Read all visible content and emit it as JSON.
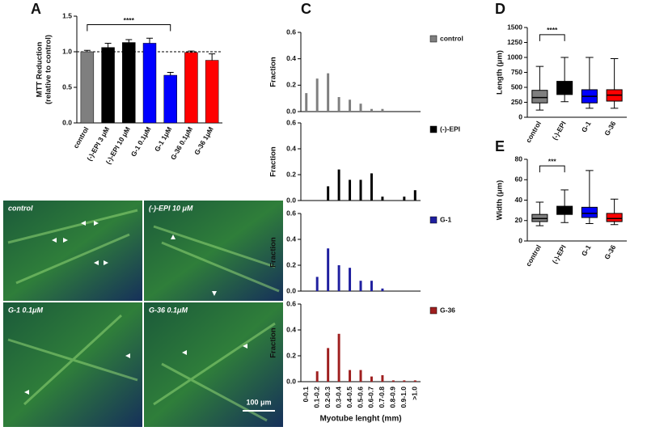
{
  "chart_data": [
    {
      "type": "bar",
      "panel_label": "A",
      "ylabel": [
        "MTT Reduction",
        "(relative to control)"
      ],
      "categories": [
        "control",
        "(-)-EPI 3 μM",
        "(-)-EPI 10 μM",
        "G-1 0.1μM",
        "G-1 1μM",
        "G-36 0.1μM",
        "G-36 1μM"
      ],
      "values": [
        1.0,
        1.06,
        1.13,
        1.12,
        0.67,
        0.99,
        0.88
      ],
      "errors": [
        0.02,
        0.06,
        0.04,
        0.07,
        0.04,
        0.02,
        0.09
      ],
      "colors": [
        "#7f7f7f",
        "#000000",
        "#000000",
        "#0000ff",
        "#0000ff",
        "#ff0000",
        "#ff0000"
      ],
      "ylim": [
        0,
        1.5
      ],
      "yticks": [
        {
          "value": 0,
          "label": "0.0"
        },
        0.5,
        {
          "value": 1,
          "label": "1.0"
        },
        1.5
      ],
      "reference_line": 1,
      "annotation": "****"
    },
    {
      "type": "bar",
      "panel_label": "C",
      "ylabel": "Fraction",
      "categories": [
        null,
        null,
        null,
        null,
        null,
        null,
        null,
        null,
        null,
        null,
        null
      ],
      "series": [
        {
          "name": "control",
          "color": "#7f7f7f",
          "values": [
            0.14,
            0.25,
            0.29,
            0.11,
            0.09,
            0.06,
            0.02,
            0.02,
            0,
            0,
            0
          ]
        }
      ],
      "ylim": [
        0,
        0.6
      ],
      "yticks": [
        {
          "value": 0,
          "label": "0.0"
        },
        0.2,
        0.4,
        0.6
      ]
    },
    {
      "type": "bar",
      "ylabel": "Fraction",
      "categories": [
        null,
        null,
        null,
        null,
        null,
        null,
        null,
        null,
        null,
        null,
        null
      ],
      "series": [
        {
          "name": "(-)-EPI",
          "color": "#000000",
          "values": [
            0,
            0,
            0.11,
            0.24,
            0.16,
            0.16,
            0.21,
            0.03,
            0,
            0.03,
            0.08
          ]
        }
      ],
      "ylim": [
        0,
        0.6
      ],
      "yticks": [
        {
          "value": 0,
          "label": "0.0"
        },
        0.2,
        0.4,
        0.6
      ]
    },
    {
      "type": "bar",
      "ylabel": "Fraction",
      "categories": [
        null,
        null,
        null,
        null,
        null,
        null,
        null,
        null,
        null,
        null,
        null
      ],
      "series": [
        {
          "name": "G-1",
          "color": "#1f1f9f",
          "values": [
            0,
            0.11,
            0.33,
            0.2,
            0.18,
            0.08,
            0.08,
            0.02,
            0,
            0,
            0
          ]
        }
      ],
      "ylim": [
        0,
        0.6
      ],
      "yticks": [
        {
          "value": 0,
          "label": "0.0"
        },
        0.2,
        0.4,
        0.6
      ]
    },
    {
      "type": "bar",
      "ylabel": "Fraction",
      "xlabel": "Myotube lenght (mm)",
      "categories": [
        "0-0.1",
        "0.1-0.2",
        "0.2-0.3",
        "0.3-0.4",
        "0.4-0.5",
        "0.5-0.6",
        "0.6-0.7",
        "0.7-0.8",
        "0.8-0.9",
        "0.9-1.0",
        ">1.0"
      ],
      "series": [
        {
          "name": "G-36",
          "color": "#9f1f1f",
          "values": [
            0,
            0.08,
            0.26,
            0.37,
            0.09,
            0.09,
            0.04,
            0.05,
            0.01,
            0.01,
            0.01
          ]
        }
      ],
      "ylim": [
        0,
        0.6
      ],
      "yticks": [
        {
          "value": 0,
          "label": "0.0"
        },
        0.2,
        0.4,
        0.6
      ]
    },
    {
      "type": "box",
      "panel_label": "D",
      "ylabel": "Length (μm)",
      "categories": [
        "control",
        "(-)-EPI",
        "G-1",
        "G-36"
      ],
      "colors": [
        "#7f7f7f",
        "#000000",
        "#0000ff",
        "#ff0000"
      ],
      "boxes": [
        {
          "min": 120,
          "q1": 240,
          "median": 330,
          "q3": 450,
          "max": 850
        },
        {
          "min": 260,
          "q1": 380,
          "median": 480,
          "q3": 600,
          "max": 1000
        },
        {
          "min": 150,
          "q1": 240,
          "median": 350,
          "q3": 460,
          "max": 1000
        },
        {
          "min": 150,
          "q1": 270,
          "median": 370,
          "q3": 460,
          "max": 980
        }
      ],
      "ylim": [
        0,
        1500
      ],
      "yticks": [
        0,
        250,
        500,
        750,
        1000,
        1250,
        1500
      ],
      "annotation": "****"
    },
    {
      "type": "box",
      "panel_label": "E",
      "ylabel": "Width (μm)",
      "categories": [
        "control",
        "(-)-EPI",
        "G-1",
        "G-36"
      ],
      "colors": [
        "#7f7f7f",
        "#000000",
        "#0000ff",
        "#ff0000"
      ],
      "boxes": [
        {
          "min": 15,
          "q1": 19,
          "median": 22,
          "q3": 26,
          "max": 38
        },
        {
          "min": 18,
          "q1": 26,
          "median": 30,
          "q3": 34,
          "max": 50
        },
        {
          "min": 17,
          "q1": 23,
          "median": 27,
          "q3": 33,
          "max": 69
        },
        {
          "min": 16,
          "q1": 19,
          "median": 22,
          "q3": 27,
          "max": 41
        }
      ],
      "ylim": [
        0,
        80
      ],
      "yticks": [
        0,
        20,
        40,
        60,
        80
      ],
      "annotation": "***"
    }
  ],
  "micrographs": {
    "panel_label": "B",
    "labels": [
      "control",
      "(-)-EPI 10 μM",
      "G-1 0.1μM",
      "G-36 0.1μM"
    ],
    "scale_bar": "100 μm"
  }
}
